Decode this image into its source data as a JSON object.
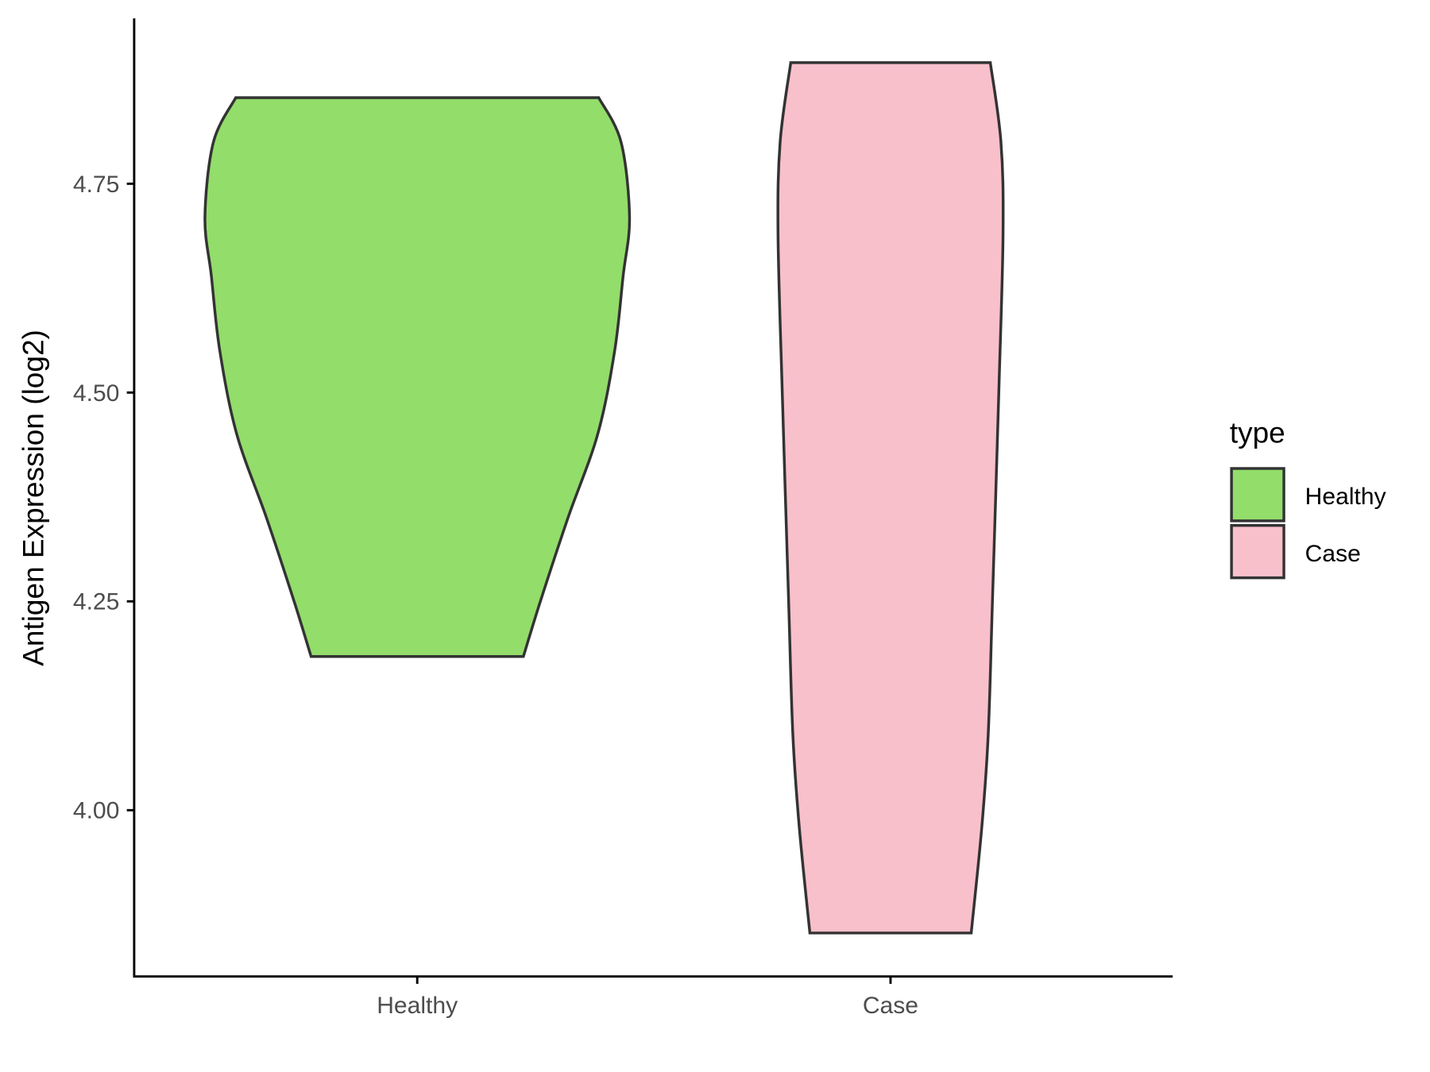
{
  "chart_data": {
    "type": "violin",
    "title": "",
    "xlabel": "",
    "ylabel": "Antigen Expression (log2)",
    "categories": [
      "Healthy",
      "Case"
    ],
    "yticks": [
      4.0,
      4.25,
      4.5,
      4.75
    ],
    "ytick_labels": [
      "4.00",
      "4.25",
      "4.50",
      "4.75"
    ],
    "grid": false,
    "legend": {
      "title": "type",
      "placement": "right",
      "entries": [
        "Healthy",
        "Case"
      ]
    },
    "series": [
      {
        "name": "Healthy",
        "color": "#93DD6B",
        "min": 4.184,
        "max": 4.853,
        "density_profile": [
          [
            4.184,
            0.5
          ],
          [
            4.25,
            0.58
          ],
          [
            4.35,
            0.71
          ],
          [
            4.45,
            0.85
          ],
          [
            4.55,
            0.93
          ],
          [
            4.64,
            0.97
          ],
          [
            4.71,
            1.0
          ],
          [
            4.8,
            0.96
          ],
          [
            4.853,
            0.855
          ]
        ]
      },
      {
        "name": "Case",
        "color": "#F8C0CB",
        "min": 3.853,
        "max": 4.895,
        "density_profile": [
          [
            3.853,
            0.38
          ],
          [
            3.98,
            0.43
          ],
          [
            4.09,
            0.46
          ],
          [
            4.25,
            0.48
          ],
          [
            4.5,
            0.51
          ],
          [
            4.69,
            0.53
          ],
          [
            4.8,
            0.52
          ],
          [
            4.895,
            0.47
          ]
        ]
      }
    ],
    "outline_color": "#333333"
  }
}
